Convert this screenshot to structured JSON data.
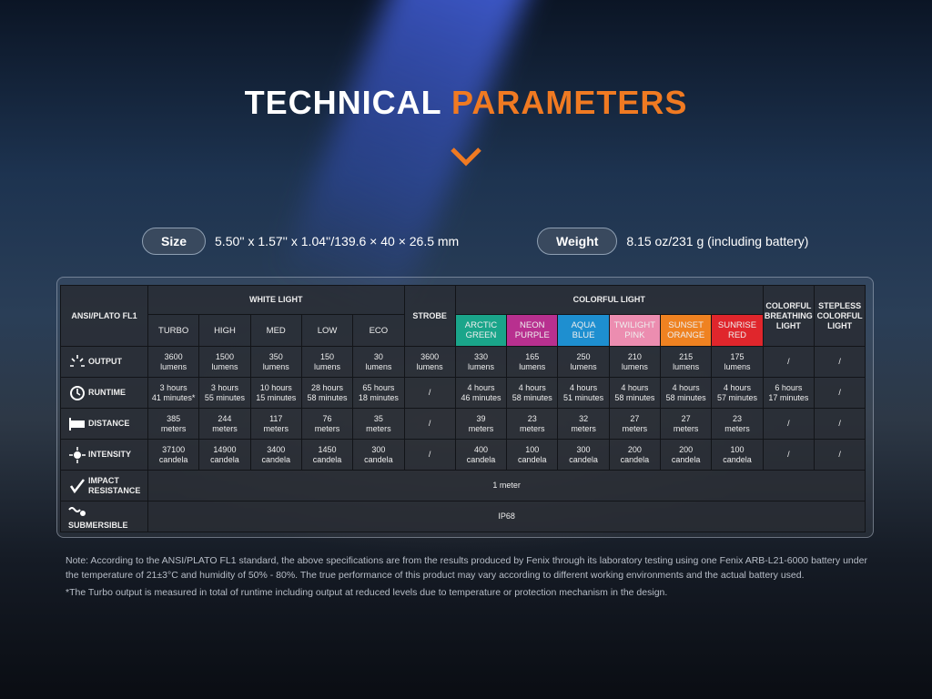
{
  "title": {
    "part1": "TECHNICAL",
    "part2": "PARAMETERS"
  },
  "specs": [
    {
      "label": "Size",
      "value": "5.50'' x 1.57'' x 1.04''/139.6 × 40 × 26.5 mm"
    },
    {
      "label": "Weight",
      "value": "8.15 oz/231 g (including battery)"
    }
  ],
  "table": {
    "corner": "ANSI/PLATO FL1",
    "white_group": "WHITE LIGHT",
    "white_modes": [
      "TURBO",
      "HIGH",
      "MED",
      "LOW",
      "ECO"
    ],
    "strobe": "STROBE",
    "color_group": "COLORFUL LIGHT",
    "color_modes": [
      {
        "label": "ARCTIC\nGREEN",
        "color": "#1aa58a"
      },
      {
        "label": "NEON\nPURPLE",
        "color": "#b8308f"
      },
      {
        "label": "AQUA\nBLUE",
        "color": "#1e8fd0"
      },
      {
        "label": "TWILIGHT\nPINK",
        "color": "#ec8db0"
      },
      {
        "label": "SUNSET\nORANGE",
        "color": "#ef8221"
      },
      {
        "label": "SUNRISE\nRED",
        "color": "#e0262c"
      }
    ],
    "breathing": "COLORFUL\nBREATHING\nLIGHT",
    "stepless": "STEPLESS\nCOLORFUL\nLIGHT",
    "rows": [
      {
        "label": "OUTPUT",
        "cells": [
          "3600\nlumens",
          "1500\nlumens",
          "350\nlumens",
          "150\nlumens",
          "30\nlumens",
          "3600\nlumens",
          "330\nlumens",
          "165\nlumens",
          "250\nlumens",
          "210\nlumens",
          "215\nlumens",
          "175\nlumens",
          "/",
          "/"
        ]
      },
      {
        "label": "RUNTIME",
        "cells": [
          "3 hours\n41 minutes*",
          "3 hours\n55 minutes",
          "10 hours\n15 minutes",
          "28 hours\n58 minutes",
          "65 hours\n18 minutes",
          "/",
          "4 hours\n46 minutes",
          "4 hours\n58 minutes",
          "4 hours\n51 minutes",
          "4 hours\n58 minutes",
          "4 hours\n58 minutes",
          "4 hours\n57 minutes",
          "6 hours\n17 minutes",
          "/"
        ]
      },
      {
        "label": "DISTANCE",
        "cells": [
          "385\nmeters",
          "244\nmeters",
          "117\nmeters",
          "76\nmeters",
          "35\nmeters",
          "/",
          "39\nmeters",
          "23\nmeters",
          "32\nmeters",
          "27\nmeters",
          "27\nmeters",
          "23\nmeters",
          "/",
          "/"
        ]
      },
      {
        "label": "INTENSITY",
        "cells": [
          "37100\ncandela",
          "14900\ncandela",
          "3400\ncandela",
          "1450\ncandela",
          "300\ncandela",
          "/",
          "400\ncandela",
          "100\ncandela",
          "300\ncandela",
          "200\ncandela",
          "200\ncandela",
          "100\ncandela",
          "/",
          "/"
        ]
      },
      {
        "label": "IMPACT\nRESISTANCE",
        "cells": [
          "1 meter"
        ]
      },
      {
        "label": "SUBMERSIBLE",
        "cells": [
          "IP68"
        ]
      }
    ]
  },
  "notes": [
    "Note: According to the ANSI/PLATO FL1 standard, the above specifications are from the results produced by Fenix through its laboratory testing using one Fenix ARB-L21-6000 battery under the temperature of 21±3°C and humidity of 50% - 80%. The true performance of this product may vary according to different working environments and the actual battery used.",
    "*The Turbo output is measured in total of runtime including output at reduced levels due to temperature or protection mechanism in the design."
  ]
}
